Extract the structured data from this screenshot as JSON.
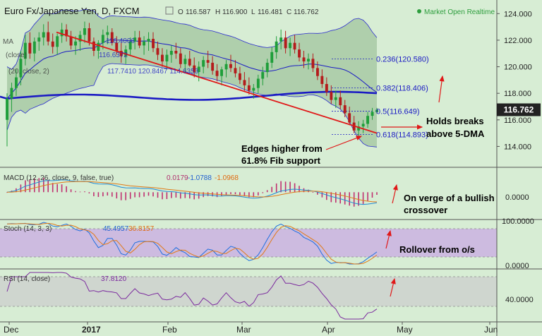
{
  "header": {
    "symbol": "Euro Fx/Japanese Yen, D, FXCM",
    "ohlc": [
      {
        "label": "O",
        "value": "116.587"
      },
      {
        "label": "H",
        "value": "116.900"
      },
      {
        "label": "L",
        "value": "116.481"
      },
      {
        "label": "C",
        "value": "116.762"
      }
    ],
    "status": "Market Open Realtime",
    "status_color": "#2e9e3e"
  },
  "colors": {
    "background": "#d7edd4",
    "bull_candle": "#1f9e3a",
    "bear_candle": "#b41c1c",
    "bollinger_fill": "#a8c9a4",
    "ma_blue": "#1b1bc4",
    "trendline": "#e01818",
    "stoch_band": "#cdbbe0",
    "rsi_band": "#cfd6cf",
    "price_tag": "#222222"
  },
  "price_panel": {
    "indicators": [
      {
        "text": "MA",
        "value": ""
      },
      {
        "text": "(close)",
        "value": "116.6372"
      },
      {
        "text": "(20, close, 2)",
        "value": "117.7410  120.8467  114.6353"
      }
    ],
    "indicator_extra": "116.4006",
    "current_price": "116.762",
    "fib_levels": [
      {
        "label": "0.236(120.580)",
        "price": 120.58
      },
      {
        "label": "0.382(118.406)",
        "price": 118.406
      },
      {
        "label": "0.5(116.649)",
        "price": 116.649
      },
      {
        "label": "0.618(114.893)",
        "price": 114.893
      }
    ],
    "annotations": [
      {
        "text": "Holds breaks",
        "line2": "above 5-DMA"
      },
      {
        "text": "Edges higher from",
        "line2": "61.8% Fib support"
      }
    ]
  },
  "macd_panel": {
    "label": "MACD (12, 26, close, 9, false, true)",
    "values": [
      "0.0179",
      "-1.0788",
      "-1.0968"
    ],
    "value_colors": [
      "#b0306e",
      "#1f5fd0",
      "#e06a10"
    ],
    "axis_label": "0.0000",
    "annotation": "On verge of a bullish",
    "annotation_line2": "crossover"
  },
  "stoch_panel": {
    "label": "Stoch (14, 3, 3)",
    "values": [
      "45.4957",
      "36.8157"
    ],
    "value_colors": [
      "#1f5fd0",
      "#e06a10"
    ],
    "axis_labels": [
      "100.0000",
      "0.0000"
    ],
    "annotation": "Rollover from o/s"
  },
  "rsi_panel": {
    "label": "RSI (14, close)",
    "value": "37.8120",
    "value_color": "#7b2a9e",
    "axis_label": "40.0000"
  },
  "chart_data": {
    "type": "candlestick",
    "symbol": "Euro Fx/Japanese Yen",
    "timeframe": "D",
    "y_axis_labels": [
      "124.000",
      "122.000",
      "120.000",
      "118.000",
      "116.000",
      "114.000"
    ],
    "y_axis_values": [
      124,
      122,
      120,
      118,
      116,
      114
    ],
    "ylim": [
      112.8,
      124.6
    ],
    "x_axis_labels": [
      "Dec",
      "2017",
      "Feb",
      "Mar",
      "Apr",
      "May",
      "Jun"
    ],
    "candles": [
      [
        116.0,
        118.0,
        114.0,
        117.6
      ],
      [
        117.6,
        118.8,
        116.6,
        118.4
      ],
      [
        118.4,
        119.8,
        117.8,
        119.2
      ],
      [
        119.2,
        121.2,
        118.6,
        120.6
      ],
      [
        120.6,
        122.4,
        120.1,
        121.8
      ],
      [
        121.8,
        122.6,
        120.6,
        121.0
      ],
      [
        121.0,
        122.2,
        120.4,
        121.9
      ],
      [
        121.9,
        122.6,
        121.2,
        122.2
      ],
      [
        122.2,
        123.2,
        121.6,
        122.6
      ],
      [
        122.6,
        123.4,
        121.6,
        121.9
      ],
      [
        121.9,
        122.5,
        121.0,
        121.5
      ],
      [
        121.5,
        122.5,
        120.9,
        122.3
      ],
      [
        122.3,
        123.3,
        121.8,
        122.8
      ],
      [
        122.8,
        123.2,
        121.9,
        122.3
      ],
      [
        122.3,
        122.7,
        121.3,
        121.6
      ],
      [
        121.6,
        122.3,
        120.9,
        121.9
      ],
      [
        121.9,
        122.7,
        121.2,
        122.4
      ],
      [
        122.4,
        123.4,
        121.8,
        122.9
      ],
      [
        122.9,
        123.3,
        121.6,
        121.9
      ],
      [
        121.9,
        122.2,
        120.8,
        121.2
      ],
      [
        121.2,
        122.0,
        120.6,
        121.8
      ],
      [
        121.8,
        122.8,
        121.3,
        122.4
      ],
      [
        122.4,
        123.1,
        121.7,
        122.6
      ],
      [
        122.6,
        122.9,
        121.6,
        121.8
      ],
      [
        121.8,
        122.3,
        120.9,
        121.2
      ],
      [
        121.2,
        121.8,
        120.3,
        120.8
      ],
      [
        120.8,
        121.6,
        120.2,
        121.3
      ],
      [
        121.3,
        122.2,
        120.8,
        121.9
      ],
      [
        121.9,
        122.7,
        121.3,
        122.2
      ],
      [
        122.2,
        122.7,
        121.4,
        121.6
      ],
      [
        121.6,
        122.3,
        120.9,
        121.9
      ],
      [
        121.9,
        122.6,
        121.2,
        122.1
      ],
      [
        122.1,
        122.6,
        121.1,
        121.4
      ],
      [
        121.4,
        121.9,
        120.5,
        120.9
      ],
      [
        120.9,
        121.4,
        120.0,
        120.4
      ],
      [
        120.4,
        121.3,
        119.8,
        120.9
      ],
      [
        120.9,
        121.6,
        120.3,
        121.2
      ],
      [
        121.2,
        121.8,
        120.6,
        121.0
      ],
      [
        121.0,
        121.4,
        119.9,
        120.2
      ],
      [
        120.2,
        120.9,
        119.6,
        120.6
      ],
      [
        120.6,
        121.2,
        120.0,
        120.1
      ],
      [
        120.1,
        120.7,
        119.2,
        119.6
      ],
      [
        119.6,
        120.4,
        118.9,
        120.0
      ],
      [
        120.0,
        120.8,
        119.5,
        120.5
      ],
      [
        120.5,
        121.2,
        119.9,
        120.3
      ],
      [
        120.3,
        120.8,
        119.4,
        119.7
      ],
      [
        119.7,
        120.2,
        118.9,
        119.3
      ],
      [
        119.3,
        120.0,
        118.6,
        119.8
      ],
      [
        119.8,
        120.5,
        119.2,
        120.2
      ],
      [
        120.2,
        120.9,
        119.6,
        119.9
      ],
      [
        119.9,
        120.5,
        119.2,
        119.5
      ],
      [
        119.5,
        120.0,
        118.7,
        119.0
      ],
      [
        119.0,
        119.6,
        118.2,
        118.6
      ],
      [
        118.6,
        119.2,
        117.9,
        118.2
      ],
      [
        118.2,
        118.7,
        117.6,
        118.4
      ],
      [
        118.4,
        119.4,
        118.0,
        119.1
      ],
      [
        119.1,
        120.0,
        118.6,
        119.6
      ],
      [
        119.6,
        120.6,
        119.2,
        120.3
      ],
      [
        120.3,
        121.5,
        119.9,
        121.1
      ],
      [
        121.1,
        122.3,
        120.6,
        121.9
      ],
      [
        121.9,
        122.8,
        121.3,
        122.2
      ],
      [
        122.2,
        122.7,
        121.0,
        121.4
      ],
      [
        121.4,
        122.2,
        120.8,
        121.8
      ],
      [
        121.8,
        122.4,
        121.0,
        121.3
      ],
      [
        121.3,
        121.8,
        120.4,
        120.7
      ],
      [
        120.7,
        121.2,
        119.9,
        120.4
      ],
      [
        120.4,
        121.0,
        119.8,
        120.6
      ],
      [
        120.6,
        121.0,
        119.6,
        119.9
      ],
      [
        119.9,
        120.4,
        119.0,
        119.3
      ],
      [
        119.3,
        119.8,
        118.4,
        118.7
      ],
      [
        118.7,
        119.2,
        117.8,
        118.1
      ],
      [
        118.1,
        118.6,
        117.2,
        117.5
      ],
      [
        117.5,
        118.2,
        116.9,
        117.7
      ],
      [
        117.7,
        118.2,
        116.8,
        117.1
      ],
      [
        117.1,
        117.5,
        116.2,
        116.5
      ],
      [
        116.5,
        117.0,
        115.6,
        115.8
      ],
      [
        115.8,
        116.3,
        115.0,
        115.2
      ],
      [
        115.2,
        115.9,
        114.7,
        115.5
      ],
      [
        115.5,
        116.0,
        115.0,
        115.7
      ],
      [
        115.7,
        116.6,
        115.4,
        116.3
      ],
      [
        116.3,
        116.9,
        116.0,
        116.6
      ],
      [
        116.587,
        116.9,
        116.481,
        116.762
      ]
    ],
    "trendline": {
      "from_price": 122.6,
      "to_price": 115.0
    },
    "fib_levels": [
      120.58,
      118.406,
      116.649,
      114.893
    ],
    "current_price": 116.762,
    "macd_range": [
      -2.6,
      2.2
    ],
    "stoch_range": [
      0,
      100
    ],
    "rsi_range": [
      20,
      80
    ]
  }
}
